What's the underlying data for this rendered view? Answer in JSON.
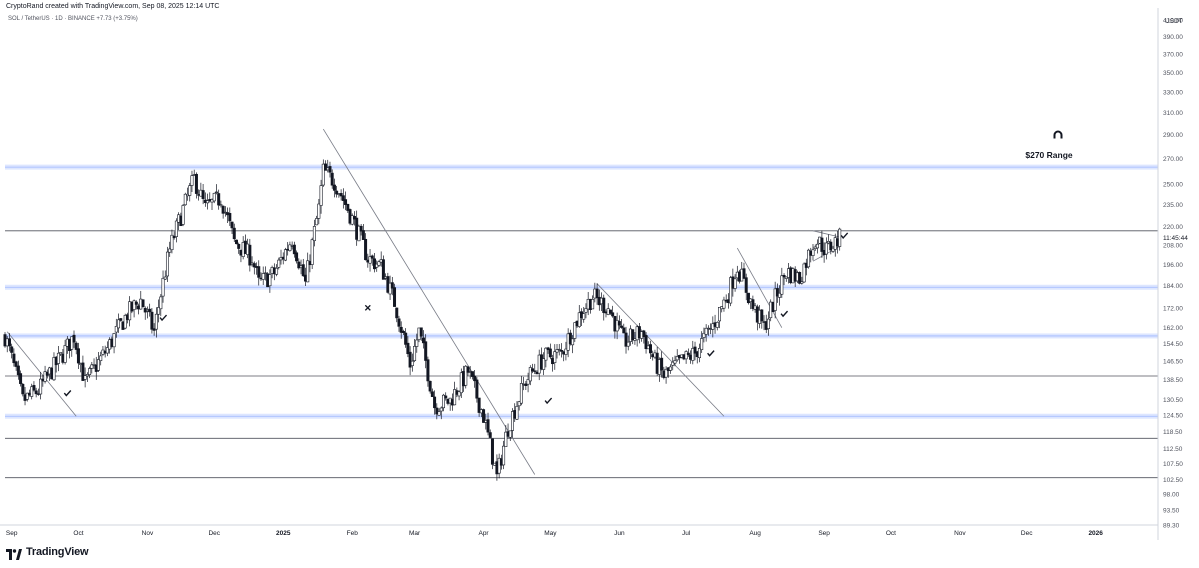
{
  "header": {
    "credit": "CryptoRand created with TradingView.com, Sep 08, 2025 12:14 UTC",
    "symbol": "SOL / TetherUS · 1D · BINANCE",
    "change": "+7.73 (+3.75%)"
  },
  "footer": {
    "brand": "TradingView"
  },
  "colors": {
    "zone": "#2962ff",
    "candle_up": "#ffffff",
    "candle_down": "#131722",
    "line": "#131722"
  },
  "chart_data": {
    "type": "candlestick",
    "currency_label": "USDT",
    "current_time": "11:45:44",
    "annotation": "$270 Range",
    "annotation_icon": "magnet-icon",
    "y_scale": "log",
    "ylim": [
      89.3,
      420
    ],
    "y_ticks": [
      "410.00",
      "390.00",
      "370.00",
      "350.00",
      "330.00",
      "310.00",
      "290.00",
      "270.00",
      "250.00",
      "235.00",
      "220.00",
      "208.00",
      "196.00",
      "184.00",
      "172.00",
      "162.00",
      "154.50",
      "146.50",
      "138.50",
      "130.50",
      "124.50",
      "118.50",
      "112.50",
      "107.50",
      "102.50",
      "98.00",
      "93.50",
      "89.30"
    ],
    "x_ticks": [
      {
        "label": "Sep",
        "date": "2024-09-01"
      },
      {
        "label": "Oct",
        "date": "2024-10-01"
      },
      {
        "label": "Nov",
        "date": "2024-11-01"
      },
      {
        "label": "Dec",
        "date": "2024-12-01"
      },
      {
        "label": "2025",
        "date": "2025-01-01",
        "bold": true
      },
      {
        "label": "Feb",
        "date": "2025-02-01"
      },
      {
        "label": "Mar",
        "date": "2025-03-01"
      },
      {
        "label": "Apr",
        "date": "2025-04-01"
      },
      {
        "label": "May",
        "date": "2025-05-01"
      },
      {
        "label": "Jun",
        "date": "2025-06-01"
      },
      {
        "label": "Jul",
        "date": "2025-07-01"
      },
      {
        "label": "Aug",
        "date": "2025-08-01"
      },
      {
        "label": "Sep",
        "date": "2025-09-01"
      },
      {
        "label": "Oct",
        "date": "2025-10-01"
      },
      {
        "label": "Nov",
        "date": "2025-11-01"
      },
      {
        "label": "Dec",
        "date": "2025-12-01"
      },
      {
        "label": "2026",
        "date": "2026-01-01",
        "bold": true
      }
    ],
    "x_range": [
      "2024-08-29",
      "2026-01-29"
    ],
    "support_resistance_zones": [
      263,
      183,
      158,
      124
    ],
    "horizontal_lines": [
      217,
      140,
      116,
      103
    ],
    "trendlines": [
      {
        "from": [
          "2024-08-30",
          160
        ],
        "to": [
          "2024-09-30",
          124
        ]
      },
      {
        "from": [
          "2025-01-19",
          295
        ],
        "to": [
          "2025-04-24",
          104
        ]
      },
      {
        "from": [
          "2025-05-22",
          185
        ],
        "to": [
          "2025-07-18",
          124
        ]
      },
      {
        "from": [
          "2025-07-24",
          206
        ],
        "to": [
          "2025-08-13",
          162
        ]
      },
      {
        "from": [
          "2025-08-27",
          217
        ],
        "to": [
          "2025-09-08",
          213
        ]
      },
      {
        "from": [
          "2025-08-27",
          198
        ],
        "to": [
          "2025-09-08",
          207
        ]
      }
    ],
    "markers": [
      {
        "type": "check",
        "date": "2024-09-26",
        "value": 133
      },
      {
        "type": "check",
        "date": "2024-11-08",
        "value": 167
      },
      {
        "type": "cross",
        "date": "2025-02-08",
        "value": 172
      },
      {
        "type": "check",
        "date": "2025-04-30",
        "value": 130
      },
      {
        "type": "check",
        "date": "2025-07-12",
        "value": 150
      },
      {
        "type": "check",
        "date": "2025-08-14",
        "value": 169
      },
      {
        "type": "check",
        "date": "2025-09-10",
        "value": 214
      }
    ],
    "price_anchors": [
      [
        "2024-08-29",
        158
      ],
      [
        "2024-09-06",
        130
      ],
      [
        "2024-09-13",
        134
      ],
      [
        "2024-09-23",
        148
      ],
      [
        "2024-09-29",
        158
      ],
      [
        "2024-10-04",
        137
      ],
      [
        "2024-10-14",
        152
      ],
      [
        "2024-10-23",
        169
      ],
      [
        "2024-10-29",
        176
      ],
      [
        "2024-11-04",
        160
      ],
      [
        "2024-11-11",
        205
      ],
      [
        "2024-11-18",
        236
      ],
      [
        "2024-11-22",
        254
      ],
      [
        "2024-11-27",
        232
      ],
      [
        "2024-12-04",
        240
      ],
      [
        "2024-12-10",
        210
      ],
      [
        "2024-12-18",
        200
      ],
      [
        "2024-12-21",
        185
      ],
      [
        "2024-12-28",
        191
      ],
      [
        "2025-01-05",
        212
      ],
      [
        "2025-01-11",
        185
      ],
      [
        "2025-01-17",
        232
      ],
      [
        "2025-01-19",
        260
      ],
      [
        "2025-01-24",
        252
      ],
      [
        "2025-01-30",
        232
      ],
      [
        "2025-02-08",
        200
      ],
      [
        "2025-02-14",
        195
      ],
      [
        "2025-02-20",
        175
      ],
      [
        "2025-02-27",
        145
      ],
      [
        "2025-03-03",
        160
      ],
      [
        "2025-03-10",
        128
      ],
      [
        "2025-03-17",
        130
      ],
      [
        "2025-03-25",
        142
      ],
      [
        "2025-04-01",
        124
      ],
      [
        "2025-04-07",
        103
      ],
      [
        "2025-04-12",
        120
      ],
      [
        "2025-04-20",
        138
      ],
      [
        "2025-04-28",
        148
      ],
      [
        "2025-05-06",
        150
      ],
      [
        "2025-05-14",
        168
      ],
      [
        "2025-05-20",
        178
      ],
      [
        "2025-05-27",
        172
      ],
      [
        "2025-06-03",
        155
      ],
      [
        "2025-06-11",
        160
      ],
      [
        "2025-06-17",
        146
      ],
      [
        "2025-06-21",
        140
      ],
      [
        "2025-06-27",
        145
      ],
      [
        "2025-07-05",
        150
      ],
      [
        "2025-07-13",
        163
      ],
      [
        "2025-07-20",
        180
      ],
      [
        "2025-07-24",
        195
      ],
      [
        "2025-07-31",
        172
      ],
      [
        "2025-08-05",
        162
      ],
      [
        "2025-08-11",
        180
      ],
      [
        "2025-08-15",
        192
      ],
      [
        "2025-08-21",
        188
      ],
      [
        "2025-08-28",
        212
      ],
      [
        "2025-09-02",
        205
      ],
      [
        "2025-09-08",
        212
      ]
    ]
  }
}
